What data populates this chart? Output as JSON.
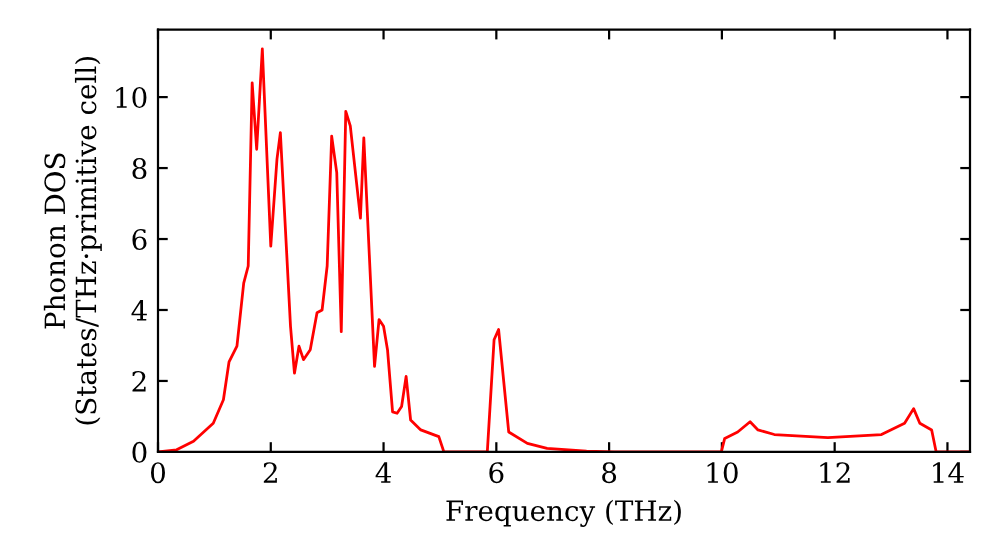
{
  "chart_data": {
    "type": "line",
    "xlabel": "Frequency (THz)",
    "ylabel": "Phonon DOS\n(States/THz·primitive cell)",
    "xlim": [
      0,
      14.4
    ],
    "ylim": [
      0,
      11.9
    ],
    "xticks": [
      0,
      2,
      4,
      6,
      8,
      10,
      12,
      14
    ],
    "yticks": [
      0,
      2,
      4,
      6,
      8,
      10
    ],
    "grid": false,
    "legend": false,
    "marker": "none",
    "line_style": "solid",
    "series": [
      {
        "color": "#ff0000",
        "x": [
          0,
          0.33,
          0.63,
          0.98,
          1.16,
          1.26,
          1.4,
          1.52,
          1.6,
          1.67,
          1.75,
          1.85,
          2.0,
          2.11,
          2.17,
          2.35,
          2.42,
          2.5,
          2.58,
          2.7,
          2.82,
          2.91,
          3.0,
          3.08,
          3.17,
          3.25,
          3.33,
          3.41,
          3.59,
          3.65,
          3.84,
          3.92,
          4.0,
          4.07,
          4.16,
          4.24,
          4.32,
          4.4,
          4.48,
          4.66,
          4.98,
          5.07,
          5.84,
          5.96,
          6.04,
          6.22,
          6.55,
          6.9,
          7.6,
          8.09,
          9.99,
          10.05,
          10.28,
          10.5,
          10.64,
          10.93,
          11.88,
          12.83,
          13.24,
          13.4,
          13.51,
          13.72,
          13.8,
          14.4
        ],
        "values": [
          0,
          0.06,
          0.3,
          0.81,
          1.47,
          2.54,
          2.98,
          4.76,
          5.24,
          10.4,
          8.53,
          11.36,
          5.8,
          8.25,
          9.0,
          3.54,
          2.22,
          2.98,
          2.6,
          2.88,
          3.92,
          4.0,
          5.24,
          8.9,
          7.87,
          3.39,
          9.6,
          9.19,
          6.59,
          8.85,
          2.41,
          3.73,
          3.54,
          2.88,
          1.13,
          1.09,
          1.28,
          2.13,
          0.9,
          0.62,
          0.43,
          0,
          0,
          3.16,
          3.45,
          0.56,
          0.24,
          0.1,
          0.02,
          0,
          0,
          0.38,
          0.56,
          0.85,
          0.62,
          0.49,
          0.4,
          0.49,
          0.81,
          1.22,
          0.81,
          0.62,
          0,
          0
        ]
      }
    ]
  }
}
